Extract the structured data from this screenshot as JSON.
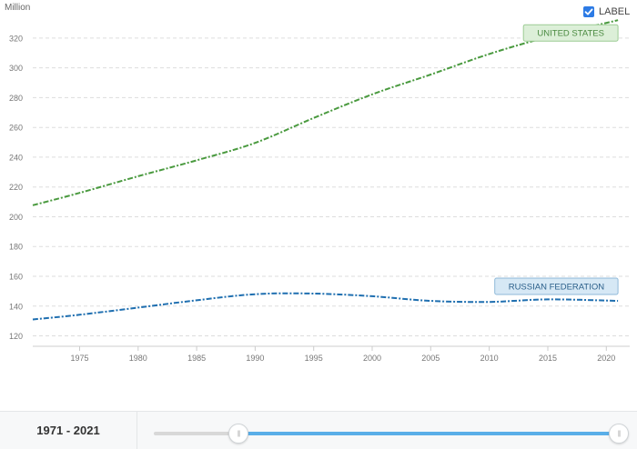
{
  "chart_data": {
    "type": "line",
    "unit_label": "Million",
    "x": [
      1971,
      1975,
      1980,
      1985,
      1990,
      1995,
      2000,
      2005,
      2010,
      2015,
      2021
    ],
    "x_ticks": [
      1975,
      1980,
      1985,
      1990,
      1995,
      2000,
      2005,
      2010,
      2015,
      2020
    ],
    "y_ticks": [
      120,
      140,
      160,
      180,
      200,
      220,
      240,
      260,
      280,
      300,
      320
    ],
    "xlim": [
      1971,
      2022
    ],
    "ylim": [
      113,
      337
    ],
    "grid": true,
    "series": [
      {
        "name": "UNITED STATES",
        "color": "#4a9a3f",
        "label_bg": "#dcefd8",
        "label_border": "#9ccc94",
        "label_color": "#4a8a40",
        "values": [
          207.7,
          216.0,
          227.2,
          237.9,
          249.6,
          266.3,
          282.2,
          295.5,
          309.3,
          320.7,
          332.0
        ]
      },
      {
        "name": "RUSSIAN FEDERATION",
        "color": "#1f6fb0",
        "label_bg": "#d6e8f5",
        "label_border": "#8fb9d9",
        "label_color": "#2b5f8a",
        "values": [
          131.0,
          134.2,
          139.0,
          143.9,
          148.0,
          148.4,
          146.6,
          143.5,
          142.8,
          144.5,
          143.5
        ]
      }
    ]
  },
  "controls": {
    "label_toggle": {
      "text": "LABEL",
      "checked": true,
      "check_color": "#2d7be5"
    },
    "range": {
      "text": "1971 - 2021",
      "start": 1971,
      "end": 2021,
      "min": 1960,
      "max": 2021
    }
  }
}
